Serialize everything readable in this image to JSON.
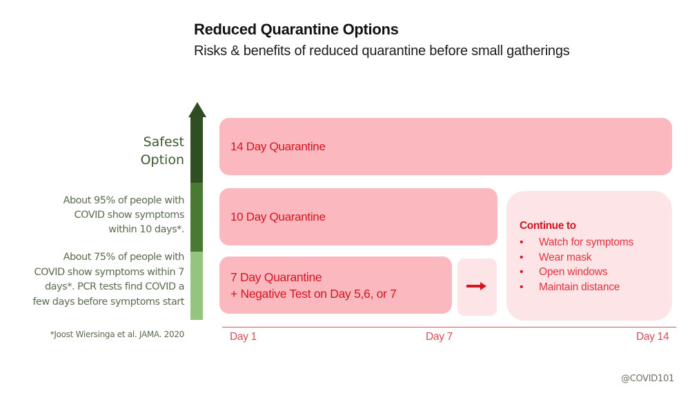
{
  "header": {
    "title": "Reduced Quarantine Options",
    "subtitle": "Risks & benefits of reduced quarantine before small gatherings"
  },
  "safety_scale": {
    "top_label_line1": "Safest",
    "top_label_line2": "Option",
    "note_95": [
      "About 95% of people with",
      "COVID show symptoms",
      "within 10 days*."
    ],
    "note_75": [
      "About 75% of people with",
      "COVID show symptoms within 7",
      "days*. PCR tests find COVID a",
      "few days before symptoms start"
    ],
    "citation": "*Joost Wiersinga et al. JAMA. 2020",
    "colors": {
      "dark": "#2f4f23",
      "medium": "#4a7a31",
      "light": "#95c47e"
    },
    "icon": "up-arrow-icon"
  },
  "options": [
    {
      "label": "14 Day Quarantine",
      "days": 14
    },
    {
      "label": "10 Day Quarantine",
      "days": 10
    },
    {
      "label_line1": "7 Day Quarantine",
      "label_line2": "+ Negative Test on Day 5,6, or 7",
      "days": 7
    }
  ],
  "transition": {
    "icon": "right-arrow-icon"
  },
  "continue_box": {
    "heading": "Continue to",
    "items": [
      "Watch for symptoms",
      "Wear mask",
      "Open windows",
      "Maintain distance"
    ]
  },
  "timeline": {
    "ticks": [
      "Day 1",
      "Day 7",
      "Day 14"
    ]
  },
  "footer": {
    "handle": "@COVID101"
  },
  "colors": {
    "box_strong": "#fbb8bf",
    "box_light": "#fde4e6",
    "accent_red": "#d4141f"
  }
}
